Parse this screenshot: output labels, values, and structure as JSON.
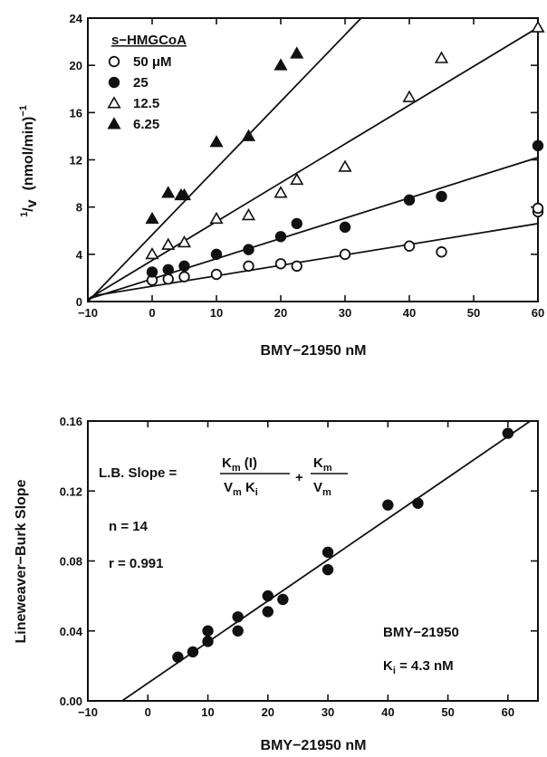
{
  "chart_data": [
    {
      "type": "line",
      "xlabel": "BMY−21950  nM",
      "ylabel_main": "1",
      "ylabel_slash": "/",
      "ylabel_v": "v",
      "ylabel_rest": "(nmol/min)",
      "ylabel_exp": "−1",
      "xlim": [
        -10,
        60
      ],
      "ylim": [
        0,
        24
      ],
      "x_ticks": [
        "−10",
        "0",
        "10",
        "20",
        "30",
        "40",
        "50",
        "60"
      ],
      "y_ticks": [
        "0",
        "4",
        "8",
        "12",
        "16",
        "20",
        "24"
      ],
      "legend_title": "s−HMGCoA",
      "legend_position": "top-left",
      "series": [
        {
          "name": "50 μM",
          "marker": "open-circle",
          "x": [
            0,
            2.5,
            5,
            10,
            15,
            20,
            22.5,
            30,
            40,
            45,
            60,
            60
          ],
          "y": [
            1.8,
            1.9,
            2.1,
            2.3,
            3.0,
            3.2,
            3.0,
            4.0,
            4.7,
            4.2,
            7.6,
            7.9
          ],
          "fit": [
            [
              -9,
              0.5
            ],
            [
              60,
              6.6
            ]
          ]
        },
        {
          "name": "25",
          "marker": "filled-circle",
          "x": [
            0,
            2.5,
            5,
            10,
            15,
            20,
            22.5,
            30,
            40,
            45,
            60
          ],
          "y": [
            2.5,
            2.7,
            3.0,
            4.0,
            4.4,
            5.5,
            6.6,
            6.3,
            8.6,
            8.9,
            13.2
          ],
          "fit": [
            [
              -10,
              0.2
            ],
            [
              60,
              12.2
            ]
          ]
        },
        {
          "name": "12.5",
          "marker": "open-triangle",
          "x": [
            0,
            2.5,
            5,
            10,
            15,
            20,
            22.5,
            30,
            40,
            45,
            60
          ],
          "y": [
            4.0,
            4.8,
            5.0,
            7.0,
            7.3,
            9.2,
            10.3,
            11.4,
            17.3,
            20.6,
            23.2
          ],
          "fit": [
            [
              -10,
              0.2
            ],
            [
              60,
              23.2
            ]
          ]
        },
        {
          "name": "6.25",
          "marker": "filled-triangle",
          "x": [
            0,
            2.5,
            4.5,
            5,
            10,
            15,
            20,
            22.5
          ],
          "y": [
            7.0,
            9.2,
            9.0,
            9.0,
            13.5,
            14.0,
            20.0,
            21.0
          ],
          "fit": [
            [
              -10,
              0.0
            ],
            [
              32.5,
              24.0
            ]
          ]
        }
      ]
    },
    {
      "type": "scatter",
      "xlabel": "BMY−21950  nM",
      "ylabel": "Lineweaver−Burk Slope",
      "xlim": [
        -10,
        65
      ],
      "ylim": [
        0,
        0.16
      ],
      "x_ticks": [
        "−10",
        "0",
        "10",
        "20",
        "30",
        "40",
        "50",
        "60"
      ],
      "y_ticks": [
        "0.00",
        "0.04",
        "0.08",
        "0.12",
        "0.16"
      ],
      "series": [
        {
          "marker": "filled-circle",
          "x": [
            5,
            7.5,
            10,
            10,
            15,
            15,
            20,
            20,
            22.5,
            30,
            30,
            40,
            45,
            60
          ],
          "y": [
            0.025,
            0.028,
            0.034,
            0.04,
            0.04,
            0.048,
            0.051,
            0.06,
            0.058,
            0.075,
            0.085,
            0.112,
            0.113,
            0.153
          ],
          "fit": [
            [
              -4.3,
              0.0
            ],
            [
              65,
              0.163
            ]
          ]
        }
      ],
      "annotations": {
        "formula_lhs": "L.B. Slope  =",
        "num1": "K",
        "num1_sub": "m",
        "num1_tail": " (I)",
        "den1a": "V",
        "den1a_sub": "m",
        "den1b": " K",
        "den1b_sub": "i",
        "plus": "+",
        "num2": "K",
        "num2_sub": "m",
        "den2": "V",
        "den2_sub": "m",
        "n_text": "n  = 14",
        "r_text": "r  = 0.991",
        "compound": "BMY−21950",
        "ki_k": "K",
        "ki_sub": "i",
        "ki_rest": " = 4.3 nM"
      }
    }
  ]
}
